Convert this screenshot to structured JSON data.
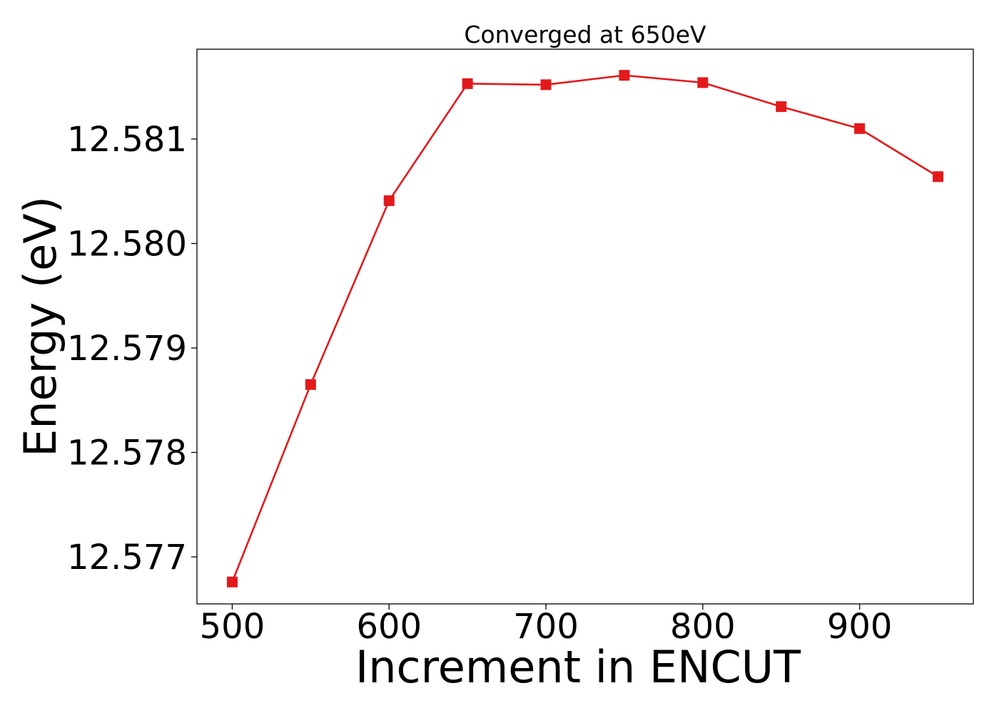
{
  "chart_data": {
    "type": "line",
    "title": "Converged at 650eV",
    "xlabel": "Increment in ENCUT",
    "ylabel": "Energy (eV)",
    "x": [
      500,
      550,
      600,
      650,
      700,
      750,
      800,
      850,
      900,
      950
    ],
    "series": [
      {
        "values": [
          12.57676,
          12.57865,
          12.58041,
          12.58153,
          12.58152,
          12.58161,
          12.58154,
          12.58131,
          12.5811,
          12.58064
        ],
        "color": "#e31a1c",
        "marker": "square"
      }
    ],
    "xticks": [
      500,
      600,
      700,
      800,
      900
    ],
    "xtick_labels": [
      "500",
      "600",
      "700",
      "800",
      "900"
    ],
    "yticks": [
      12.577,
      12.578,
      12.579,
      12.58,
      12.581
    ],
    "ytick_labels": [
      "12.577",
      "12.578",
      "12.579",
      "12.580",
      "12.581"
    ],
    "xlim": [
      477.5,
      972.5
    ],
    "ylim": [
      12.57655,
      12.58186
    ],
    "grid": false,
    "legend": "none"
  }
}
